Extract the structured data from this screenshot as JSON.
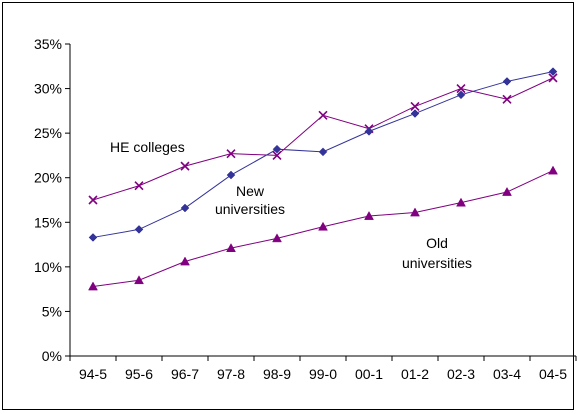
{
  "chart_data": {
    "type": "line",
    "title": "",
    "xlabel": "",
    "ylabel": "",
    "ylim": [
      0,
      35
    ],
    "y_tick_step": 5,
    "y_tick_format": "percent",
    "grid": false,
    "legend": "none",
    "categories": [
      "94-5",
      "95-6",
      "96-7",
      "97-8",
      "98-9",
      "99-0",
      "00-1",
      "01-2",
      "02-3",
      "03-4",
      "04-5"
    ],
    "series": [
      {
        "name": "HE colleges",
        "marker": "x",
        "color": "#800080",
        "values": [
          17.5,
          19.1,
          21.3,
          22.7,
          22.5,
          27.0,
          25.5,
          28.0,
          30.0,
          28.8,
          31.2
        ]
      },
      {
        "name": "New universities",
        "marker": "diamond",
        "color": "#333399",
        "values": [
          13.3,
          14.2,
          16.6,
          20.3,
          23.2,
          22.9,
          25.2,
          27.2,
          29.3,
          30.8,
          31.9
        ]
      },
      {
        "name": "Old universities",
        "marker": "triangle",
        "color": "#800080",
        "values": [
          7.8,
          8.5,
          10.6,
          12.1,
          13.2,
          14.5,
          15.7,
          16.1,
          17.2,
          18.4,
          20.8
        ]
      }
    ],
    "annotations": [
      {
        "lines": [
          "HE colleges"
        ]
      },
      {
        "lines": [
          "New",
          "universities"
        ]
      },
      {
        "lines": [
          "Old",
          "universities"
        ]
      }
    ]
  }
}
